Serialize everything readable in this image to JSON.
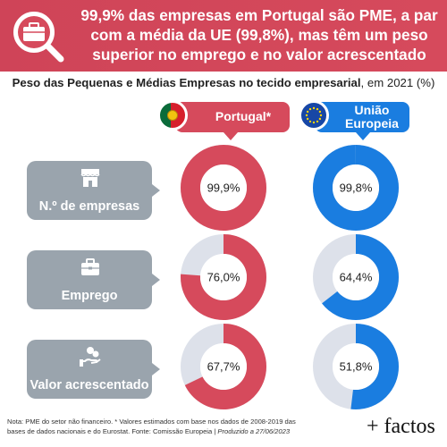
{
  "header": {
    "title_line1": "99,9% das empresas em Portugal são PME, a par",
    "title_line2": "com a média da UE (99,8%), mas têm um peso",
    "title_line3": "superior no emprego e no valor acrescentado",
    "icon": "magnifier-briefcase-icon"
  },
  "subtitle": {
    "bold": "Peso das Pequenas e Médias Empresas no tecido empresarial",
    "normal": ", em 2021 (%)"
  },
  "columns": {
    "portugal": {
      "label": "Portugal*",
      "color": "#d64a5c",
      "flag": "portugal-flag-icon"
    },
    "eu": {
      "label_line1": "União",
      "label_line2": "Europeia",
      "color": "#1a7de0",
      "flag": "eu-flag-icon"
    }
  },
  "rows": [
    {
      "label": "N.º de empresas",
      "icon": "store-icon"
    },
    {
      "label": "Emprego",
      "icon": "briefcase-icon"
    },
    {
      "label": "Valor acrescentado",
      "icon": "hand-money-icon"
    }
  ],
  "chart_data": {
    "type": "pie",
    "title": "Peso das Pequenas e Médias Empresas no tecido empresarial, em 2021 (%)",
    "categories": [
      "N.º de empresas",
      "Emprego",
      "Valor acrescentado"
    ],
    "series": [
      {
        "name": "Portugal*",
        "values": [
          99.9,
          76.0,
          67.7
        ],
        "labels": [
          "99,9%",
          "76,0%",
          "67,7%"
        ],
        "color": "#d64a5c"
      },
      {
        "name": "União Europeia",
        "values": [
          99.8,
          64.4,
          51.8
        ],
        "labels": [
          "99,8%",
          "64,4%",
          "51,8%"
        ],
        "color": "#1a7de0"
      }
    ],
    "remainder_color": "#dde1ea"
  },
  "footnote": {
    "line1": "Nota: PME do setor não financeiro. * Valores estimados com base nos dados de 2008-2019 das",
    "line2_a": "bases de dados nacionais e do Eurostat. Fonte: Comissão Europeia | ",
    "line2_b": "Produzido a 27/06/2023"
  },
  "brand": "+ factos"
}
